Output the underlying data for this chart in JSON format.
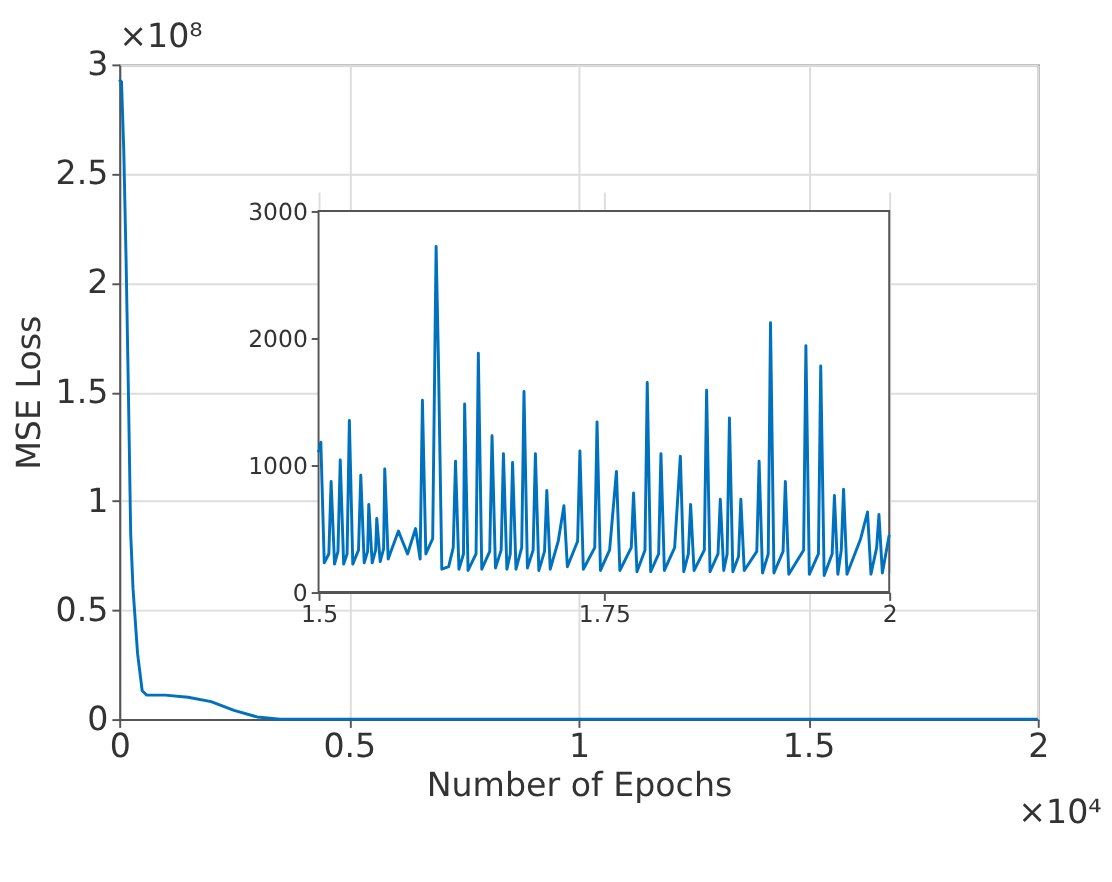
{
  "chart_data": [
    {
      "type": "line",
      "xlabel": "Number of Epochs",
      "ylabel": "MSE Loss",
      "annotations": [
        "×10⁸",
        "×10⁴"
      ],
      "grid": true,
      "xlim": [
        0,
        2
      ],
      "xticks": [
        0,
        0.5,
        1,
        1.5,
        2
      ],
      "ylim": [
        0,
        3
      ],
      "yticks": [
        0,
        0.5,
        1,
        1.5,
        2,
        2.5,
        3
      ],
      "series": [
        {
          "color": "#0072bd",
          "x": [
            0,
            0.005,
            0.01,
            0.015,
            0.02,
            0.025,
            0.03,
            0.04,
            0.05,
            0.06,
            0.1,
            0.15,
            0.2,
            0.25,
            0.3,
            0.35,
            2
          ],
          "values": [
            2.93,
            2.92,
            2.6,
            2.1,
            1.5,
            0.85,
            0.6,
            0.3,
            0.13,
            0.11,
            0.11,
            0.1,
            0.08,
            0.04,
            0.01,
            0,
            0
          ]
        }
      ]
    },
    {
      "type": "line",
      "grid": true,
      "xlim": [
        1.5,
        2
      ],
      "xticks": [
        1.5,
        1.75,
        2
      ],
      "ylim": [
        0,
        3000
      ],
      "yticks": [
        0,
        1000,
        2000,
        3000
      ],
      "series": [
        {
          "color": "#0072bd",
          "x": [
            1.5,
            1.502,
            1.505,
            1.509,
            1.511,
            1.514,
            1.517,
            1.519,
            1.522,
            1.525,
            1.527,
            1.53,
            1.535,
            1.537,
            1.54,
            1.543,
            1.544,
            1.547,
            1.55,
            1.551,
            1.554,
            1.557,
            1.558,
            1.561,
            1.57,
            1.578,
            1.585,
            1.589,
            1.591,
            1.594,
            1.6,
            1.603,
            1.605,
            1.608,
            1.614,
            1.618,
            1.62,
            1.623,
            1.627,
            1.628,
            1.631,
            1.638,
            1.64,
            1.643,
            1.65,
            1.652,
            1.655,
            1.66,
            1.662,
            1.665,
            1.668,
            1.67,
            1.673,
            1.678,
            1.68,
            1.683,
            1.688,
            1.69,
            1.693,
            1.698,
            1.7,
            1.703,
            1.71,
            1.715,
            1.718,
            1.727,
            1.729,
            1.732,
            1.742,
            1.744,
            1.747,
            1.755,
            1.761,
            1.764,
            1.774,
            1.776,
            1.779,
            1.786,
            1.788,
            1.791,
            1.798,
            1.8,
            1.803,
            1.812,
            1.817,
            1.82,
            1.824,
            1.826,
            1.829,
            1.838,
            1.84,
            1.843,
            1.85,
            1.852,
            1.855,
            1.858,
            1.86,
            1.863,
            1.868,
            1.87,
            1.873,
            1.884,
            1.886,
            1.889,
            1.894,
            1.896,
            1.899,
            1.907,
            1.909,
            1.912,
            1.925,
            1.927,
            1.93,
            1.938,
            1.94,
            1.943,
            1.95,
            1.952,
            1.955,
            1.958,
            1.96,
            1.963,
            1.975,
            1.981,
            1.984,
            1.989,
            1.991,
            1.994,
            2.0
          ],
          "values": [
            1100,
            1180,
            230,
            300,
            870,
            220,
            320,
            1040,
            220,
            300,
            1350,
            220,
            330,
            920,
            230,
            320,
            690,
            230,
            330,
            580,
            240,
            340,
            970,
            260,
            480,
            300,
            500,
            260,
            1510,
            300,
            420,
            2720,
            1840,
            180,
            200,
            350,
            1030,
            180,
            300,
            1480,
            170,
            300,
            1880,
            180,
            320,
            1230,
            190,
            330,
            1090,
            180,
            300,
            1020,
            180,
            350,
            1580,
            190,
            330,
            1090,
            170,
            320,
            800,
            180,
            400,
            680,
            200,
            400,
            1110,
            180,
            350,
            1340,
            170,
            330,
            950,
            170,
            350,
            780,
            160,
            330,
            1650,
            160,
            300,
            1090,
            170,
            350,
            1070,
            160,
            300,
            690,
            170,
            330,
            1590,
            160,
            300,
            730,
            170,
            300,
            1370,
            160,
            280,
            730,
            170,
            320,
            1030,
            150,
            300,
            2120,
            150,
            320,
            870,
            140,
            330,
            1940,
            140,
            300,
            1780,
            130,
            300,
            760,
            140,
            330,
            810,
            140,
            420,
            630,
            140,
            350,
            610,
            150,
            450
          ]
        }
      ]
    }
  ]
}
